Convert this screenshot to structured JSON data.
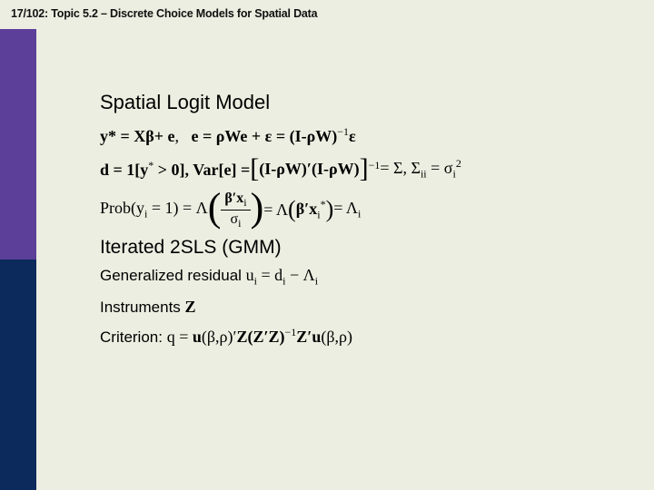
{
  "header": "17/102: Topic 5.2 – Discrete Choice Models for Spatial Data",
  "title": "Spatial Logit Model",
  "eq1_a": "y* = Xβ+ e",
  "eq1_b": "e = ρWe + ε = (I-ρW)",
  "eq1_c": "ε",
  "eq2_a": "d = 1[y",
  "eq2_b": " > 0],  Var[e] = ",
  "eq2_c": "(I-ρW)′(I-ρW)",
  "eq2_d": " = Σ,  Σ",
  "eq2_e": " = σ",
  "eq3_a": "Prob(y",
  "eq3_b": " = 1) = Λ",
  "eq3_num": "β′x",
  "eq3_den": "σ",
  "eq3_c": " = Λ",
  "eq3_d": "β′x",
  "eq3_e": "= Λ",
  "section2": "Iterated 2SLS (GMM)",
  "eq4_lbl": "Generalized residual  ",
  "eq4": "u",
  "eq4_b": " = d",
  "eq4_c": " − Λ",
  "eq5_lbl": "Instruments ",
  "eq5": "Z",
  "eq6_lbl": "Criterion:  ",
  "eq6_a": "q  =  ",
  "eq6_b": "u",
  "eq6_c": "(β,ρ)′",
  "eq6_d": "Z(Z′Z)",
  "eq6_e": "Z′u",
  "eq6_f": "(β,ρ)",
  "sidebar": {
    "top_color": "#5c3f99",
    "bottom_color": "#0c2a5b"
  }
}
